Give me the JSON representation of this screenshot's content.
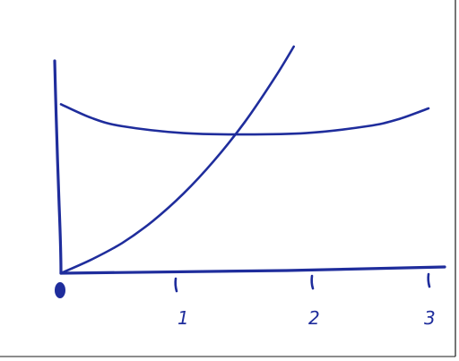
{
  "chart_data": {
    "type": "line",
    "title": "",
    "xlabel": "",
    "ylabel": "",
    "xlim": [
      0,
      3
    ],
    "ylim": [
      0,
      1.65
    ],
    "x_ticks": [
      "0",
      "1",
      "2",
      "3"
    ],
    "grid": false,
    "legend": "none",
    "series": [
      {
        "x": [
          0,
          0.25,
          0.5,
          0.75,
          1.0,
          1.25,
          1.5,
          1.75,
          1.9
        ],
        "y": [
          0,
          0.1,
          0.22,
          0.38,
          0.58,
          0.82,
          1.1,
          1.43,
          1.65
        ]
      },
      {
        "x": [
          0,
          0.25,
          0.5,
          1.0,
          1.5,
          2.0,
          2.5,
          2.75,
          3.0
        ],
        "y": [
          1.23,
          1.13,
          1.07,
          1.02,
          1.01,
          1.02,
          1.07,
          1.12,
          1.2
        ]
      }
    ]
  },
  "colors": {
    "ink": "#1f2d9c",
    "paper": "#ffffff",
    "frame": "#1a1a1a"
  }
}
